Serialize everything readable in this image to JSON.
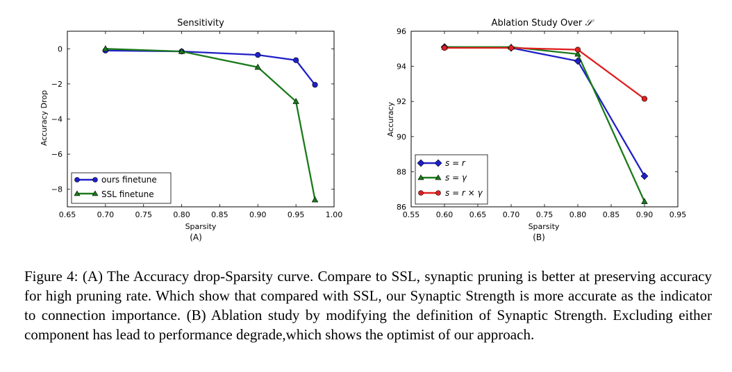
{
  "caption": "Figure 4: (A) The Accuracy drop-Sparsity curve. Compare to SSL, synaptic pruning is better at preserving accuracy for high pruning rate. Which show that compared with SSL, our Synaptic Strength is more accurate as the indicator to connection importance. (B) Ablation study by modifying the definition of Synaptic Strength. Excluding either component has lead to performance degrade,which shows the optimist of our approach.",
  "colors": {
    "blue": "#1f1fc8",
    "green": "#1a7a1a",
    "red": "#e01f1f"
  },
  "chart_data": [
    {
      "type": "line",
      "panel_label": "(A)",
      "title": "Sensitivity",
      "xlabel": "Sparsity",
      "ylabel": "Accuracy Drop",
      "xlim": [
        0.65,
        1.0
      ],
      "ylim": [
        -9,
        1
      ],
      "xticks": [
        0.65,
        0.7,
        0.75,
        0.8,
        0.85,
        0.9,
        0.95,
        1.0
      ],
      "xtick_labels": [
        "0.65",
        "0.70",
        "0.75",
        "0.80",
        "0.85",
        "0.90",
        "0.95",
        "1.00"
      ],
      "yticks": [
        0,
        -2,
        -4,
        -6,
        -8
      ],
      "ytick_labels": [
        "0",
        "−2",
        "−4",
        "−6",
        "−8"
      ],
      "legend_position": "lower-left",
      "series": [
        {
          "name": "ours finetune",
          "color": "#1f1fc8",
          "marker": "circle",
          "x": [
            0.7,
            0.8,
            0.9,
            0.95,
            0.975
          ],
          "y": [
            -0.1,
            -0.15,
            -0.35,
            -0.65,
            -2.05
          ]
        },
        {
          "name": "SSL finetune",
          "color": "#1a7a1a",
          "marker": "triangle",
          "x": [
            0.7,
            0.8,
            0.9,
            0.95,
            0.975
          ],
          "y": [
            0.0,
            -0.15,
            -1.05,
            -3.0,
            -8.6
          ]
        }
      ]
    },
    {
      "type": "line",
      "panel_label": "(B)",
      "title": "Ablation Study Over",
      "title_symbol": "𝒮",
      "xlabel": "Sparsity",
      "ylabel": "Accuracy",
      "xlim": [
        0.55,
        0.95
      ],
      "ylim": [
        86,
        96
      ],
      "xticks": [
        0.55,
        0.6,
        0.65,
        0.7,
        0.75,
        0.8,
        0.85,
        0.9,
        0.95
      ],
      "xtick_labels": [
        "0.55",
        "0.60",
        "0.65",
        "0.70",
        "0.75",
        "0.80",
        "0.85",
        "0.90",
        "0.95"
      ],
      "yticks": [
        86,
        88,
        90,
        92,
        94,
        96
      ],
      "ytick_labels": [
        "86",
        "88",
        "90",
        "92",
        "94",
        "96"
      ],
      "legend_position": "lower-left",
      "series": [
        {
          "name": "s = r",
          "color": "#1f1fc8",
          "marker": "diamond",
          "x": [
            0.6,
            0.7,
            0.8,
            0.9
          ],
          "y": [
            95.1,
            95.05,
            94.3,
            87.75
          ]
        },
        {
          "name": "s = γ",
          "color": "#1a7a1a",
          "marker": "triangle",
          "x": [
            0.6,
            0.7,
            0.8,
            0.9
          ],
          "y": [
            95.1,
            95.1,
            94.7,
            86.3
          ]
        },
        {
          "name": "s = r × γ",
          "color": "#e01f1f",
          "marker": "circle",
          "x": [
            0.6,
            0.7,
            0.8,
            0.9
          ],
          "y": [
            95.05,
            95.05,
            94.95,
            92.15
          ]
        }
      ]
    }
  ]
}
